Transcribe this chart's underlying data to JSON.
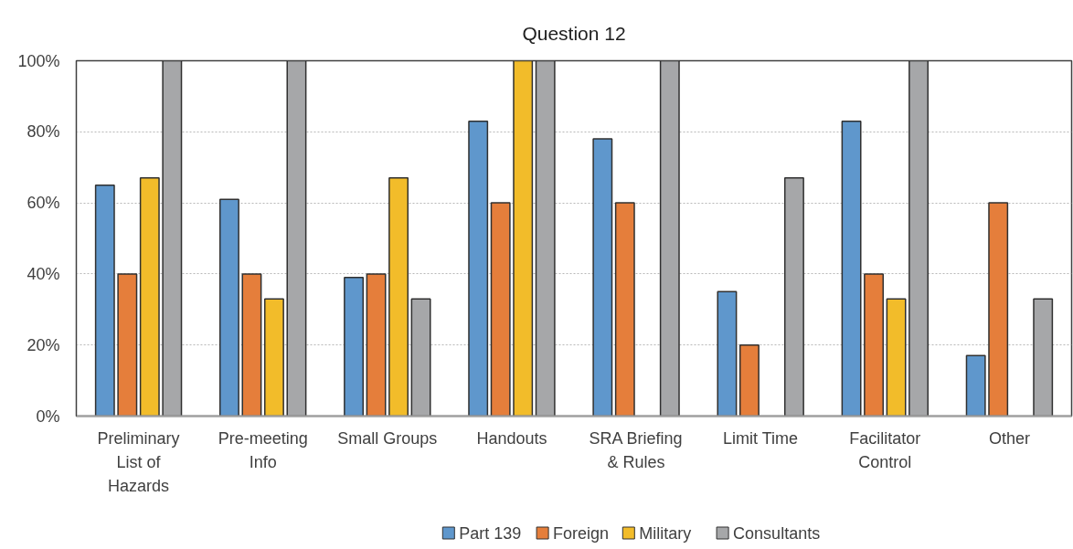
{
  "chart_data": {
    "type": "bar",
    "title": "Question 12",
    "categories": [
      "Preliminary List of Hazards",
      "Pre-meeting Info",
      "Small Groups",
      "Handouts",
      "SRA Briefing & Rules",
      "Limit Time",
      "Facilitator Control",
      "Other"
    ],
    "series": [
      {
        "name": "Part 139",
        "color": "#5f97cc",
        "values": [
          65,
          61,
          39,
          83,
          78,
          35,
          83,
          17
        ]
      },
      {
        "name": "Foreign",
        "color": "#e57e3b",
        "values": [
          40,
          40,
          40,
          60,
          60,
          20,
          40,
          60
        ]
      },
      {
        "name": "Military",
        "color": "#f2bc2a",
        "values": [
          67,
          33,
          67,
          100,
          null,
          null,
          33,
          null
        ]
      },
      {
        "name": "Consultants",
        "color": "#a6a7a9",
        "values": [
          100,
          100,
          33,
          100,
          100,
          67,
          100,
          33
        ]
      }
    ],
    "ylim": [
      0,
      100
    ],
    "yticks": [
      {
        "value": 0,
        "label": "0%"
      },
      {
        "value": 20,
        "label": "20%"
      },
      {
        "value": 40,
        "label": "40%"
      },
      {
        "value": 60,
        "label": "60%"
      },
      {
        "value": 80,
        "label": "80%"
      },
      {
        "value": 100,
        "label": "100%"
      }
    ],
    "grid": "y",
    "legend": "bottom"
  }
}
